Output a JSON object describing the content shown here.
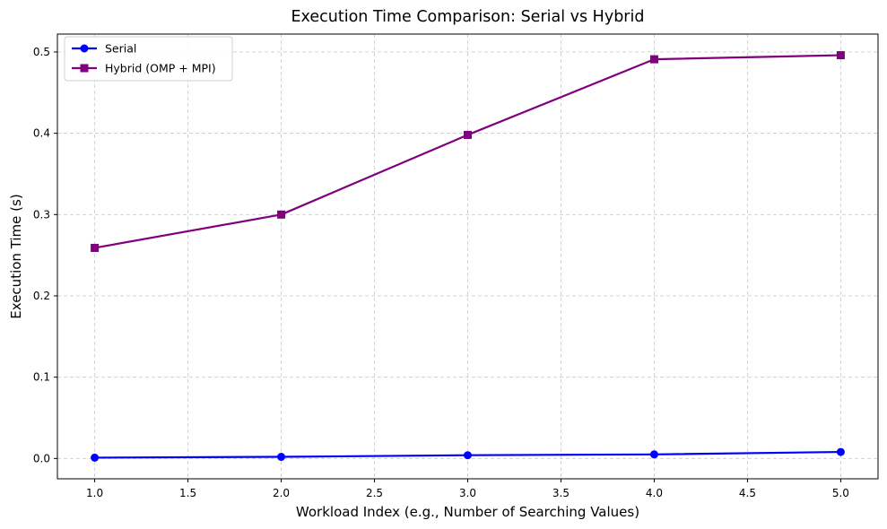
{
  "chart_data": {
    "type": "line",
    "title": "Execution Time Comparison: Serial vs Hybrid",
    "xlabel": "Workload Index (e.g., Number of Searching Values)",
    "ylabel": "Execution Time (s)",
    "x": [
      1.0,
      2.0,
      3.0,
      4.0,
      5.0
    ],
    "xlim": [
      0.8,
      5.2
    ],
    "ylim": [
      -0.025,
      0.522
    ],
    "xticks": [
      1.0,
      1.5,
      2.0,
      2.5,
      3.0,
      3.5,
      4.0,
      4.5,
      5.0
    ],
    "xtick_labels": [
      "1.0",
      "1.5",
      "2.0",
      "2.5",
      "3.0",
      "3.5",
      "4.0",
      "4.5",
      "5.0"
    ],
    "yticks": [
      0.0,
      0.1,
      0.2,
      0.3,
      0.4,
      0.5
    ],
    "ytick_labels": [
      "0.0",
      "0.1",
      "0.2",
      "0.3",
      "0.4",
      "0.5"
    ],
    "grid": true,
    "grid_style": "dashed",
    "legend_position": "top-left",
    "series": [
      {
        "name": "Serial",
        "color": "#0000ff",
        "marker": "circle",
        "values": [
          0.001,
          0.002,
          0.004,
          0.005,
          0.008
        ]
      },
      {
        "name": "Hybrid (OMP + MPI)",
        "color": "#800080",
        "marker": "square",
        "values": [
          0.259,
          0.3,
          0.398,
          0.491,
          0.496
        ]
      }
    ]
  }
}
